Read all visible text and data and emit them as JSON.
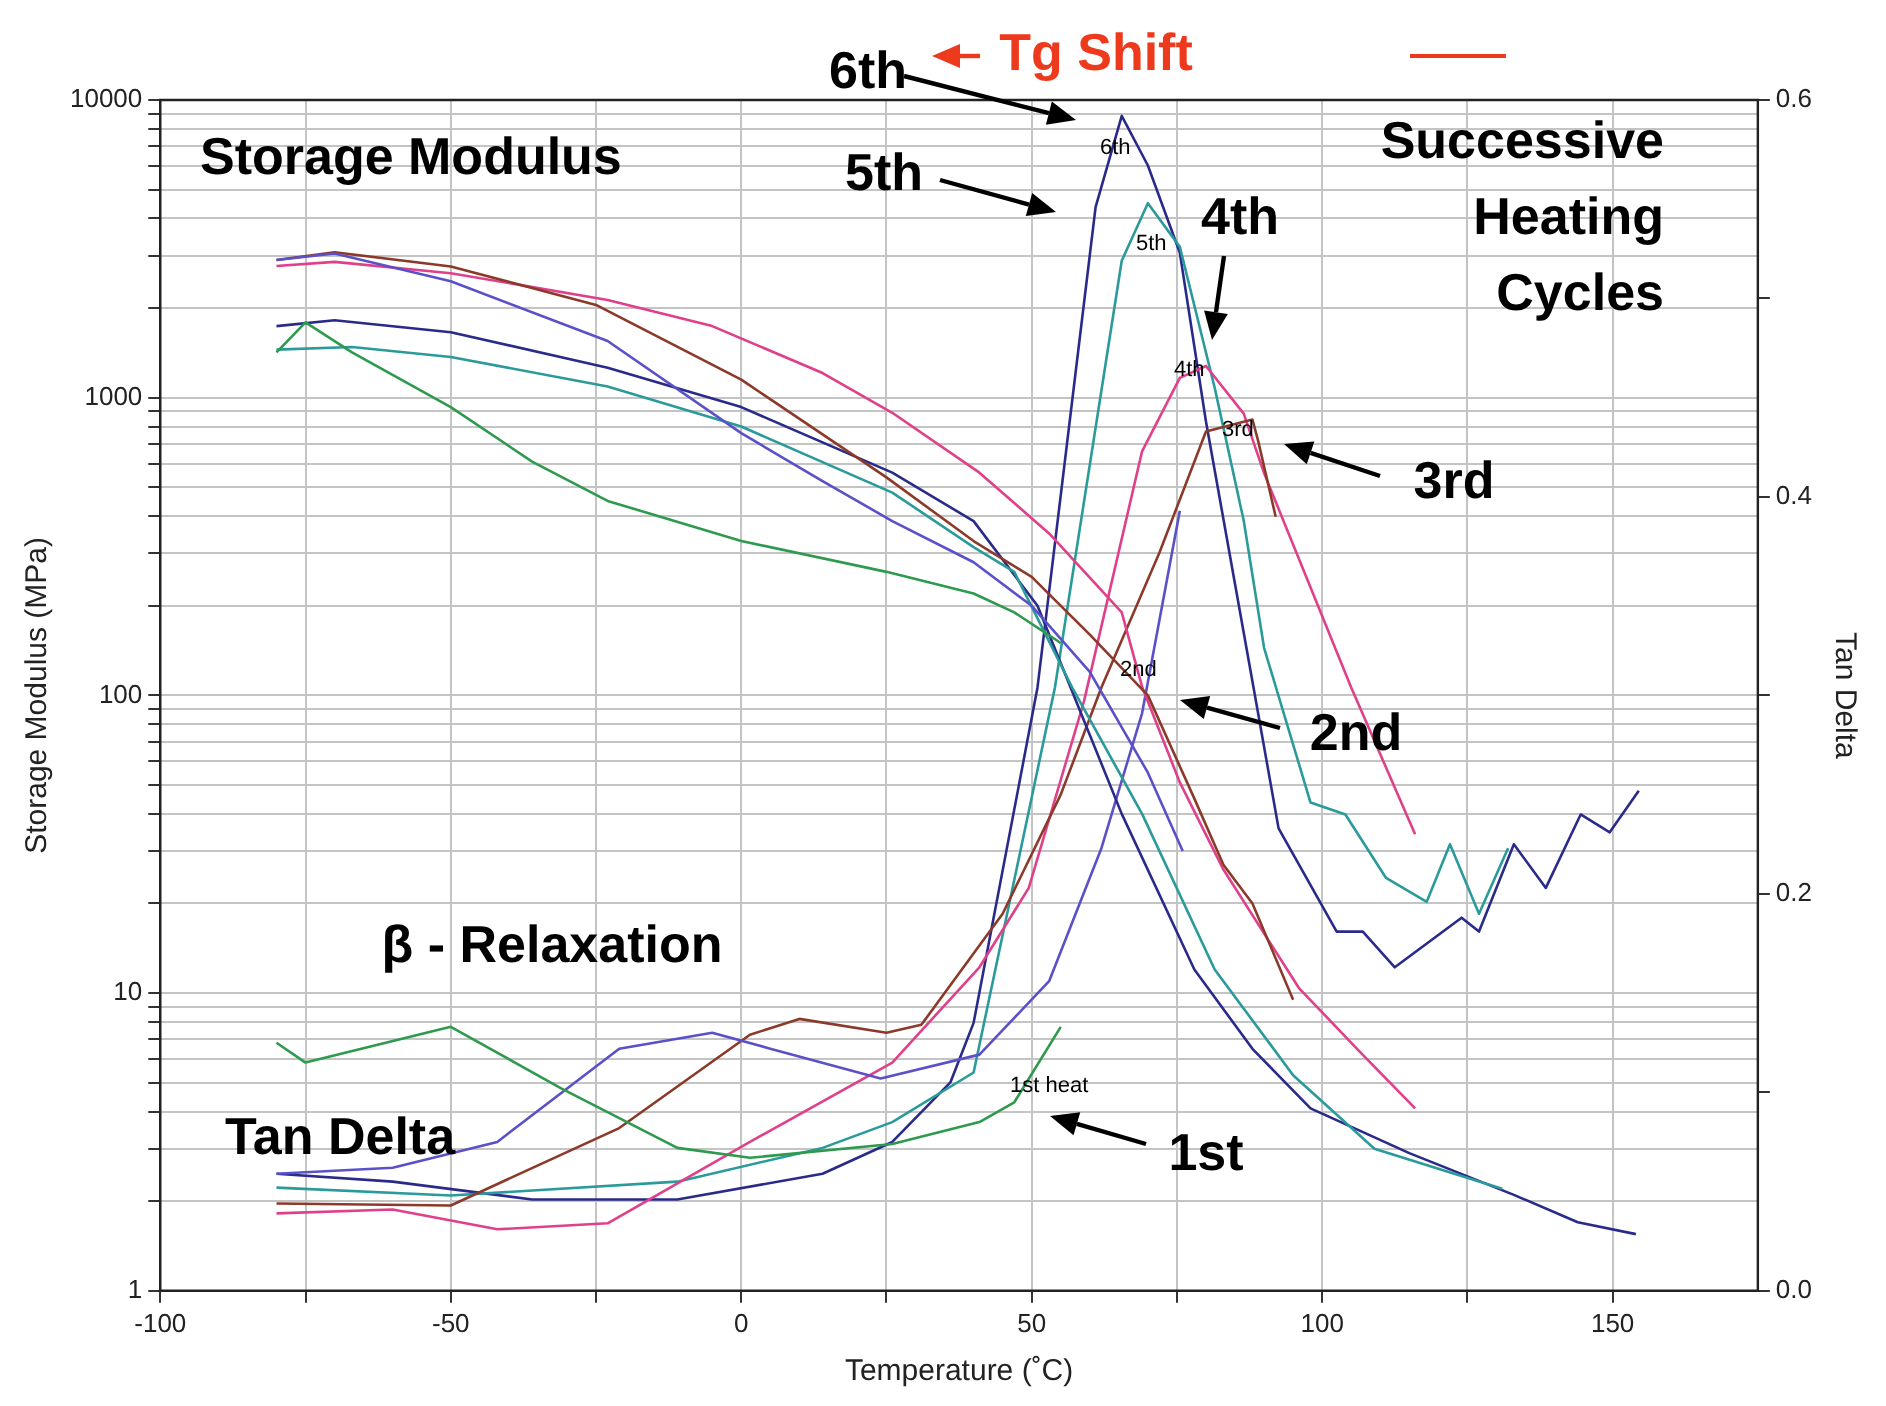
{
  "chart_data": {
    "type": "line",
    "xlabel": "Temperature (˚C)",
    "ylabel": "Storage Modulus (MPa)",
    "y2label": "Tan Delta",
    "xlim": [
      -100,
      175
    ],
    "xticks": [
      -100,
      {
        "value": -75,
        "label": null
      },
      -50,
      {
        "value": -25,
        "label": null
      },
      0,
      {
        "value": 25,
        "label": null
      },
      50,
      {
        "value": 75,
        "label": null
      },
      100,
      {
        "value": 125,
        "label": null
      },
      150
    ],
    "ylim": [
      1,
      10000
    ],
    "log": "y",
    "yticks": [
      1,
      {
        "value": 2,
        "label": null
      },
      {
        "value": 3,
        "label": null
      },
      {
        "value": 4,
        "label": null
      },
      {
        "value": 5,
        "label": null
      },
      {
        "value": 6,
        "label": null
      },
      {
        "value": 7,
        "label": null
      },
      {
        "value": 8,
        "label": null
      },
      {
        "value": 9,
        "label": null
      },
      10,
      {
        "value": 20,
        "label": null
      },
      {
        "value": 30,
        "label": null
      },
      {
        "value": 40,
        "label": null
      },
      {
        "value": 50,
        "label": null
      },
      {
        "value": 60,
        "label": null
      },
      {
        "value": 70,
        "label": null
      },
      {
        "value": 80,
        "label": null
      },
      {
        "value": 90,
        "label": null
      },
      100,
      {
        "value": 200,
        "label": null
      },
      {
        "value": 300,
        "label": null
      },
      {
        "value": 400,
        "label": null
      },
      {
        "value": 500,
        "label": null
      },
      {
        "value": 600,
        "label": null
      },
      {
        "value": 700,
        "label": null
      },
      {
        "value": 800,
        "label": null
      },
      {
        "value": 900,
        "label": null
      },
      1000,
      {
        "value": 2000,
        "label": null
      },
      {
        "value": 3000,
        "label": null
      },
      {
        "value": 4000,
        "label": null
      },
      {
        "value": 5000,
        "label": null
      },
      {
        "value": 6000,
        "label": null
      },
      {
        "value": 7000,
        "label": null
      },
      {
        "value": 8000,
        "label": null
      },
      {
        "value": 9000,
        "label": null
      },
      10000
    ],
    "y2lim": [
      0,
      0.6
    ],
    "y2ticks": [
      {
        "value": 0,
        "label": "0.0"
      },
      {
        "value": 0.1,
        "label": null
      },
      {
        "value": 0.2,
        "label": "0.2"
      },
      {
        "value": 0.3,
        "label": null
      },
      {
        "value": 0.4,
        "label": "0.4"
      },
      {
        "value": 0.5,
        "label": null
      },
      {
        "value": 0.6,
        "label": "0.6"
      }
    ],
    "grid": true,
    "legend": false,
    "marker": "none",
    "line_style": "solid",
    "series": [
      {
        "color": "#2e9a4e",
        "x": [
          -80,
          -75,
          -67,
          -50,
          -36,
          -23,
          0,
          25,
          40,
          47,
          55
        ],
        "values": [
          1420,
          1790,
          1420,
          930,
          610,
          450,
          330,
          260,
          220,
          190,
          150
        ]
      },
      {
        "color": "#5a50c8",
        "x": [
          -80,
          -70,
          -50,
          -23,
          0,
          14,
          26,
          40,
          50,
          60,
          70,
          76
        ],
        "values": [
          2900,
          3050,
          2460,
          1550,
          760,
          525,
          385,
          280,
          200,
          120,
          55,
          30
        ]
      },
      {
        "color": "#8b3a2a",
        "x": [
          -80,
          -70,
          -50,
          -25,
          0,
          25,
          40,
          50,
          60,
          70,
          78,
          83,
          88,
          95
        ],
        "values": [
          2900,
          3080,
          2760,
          2050,
          1150,
          540,
          330,
          250,
          160,
          100,
          45,
          27,
          20,
          9.5
        ]
      },
      {
        "color": "#e0408a",
        "x": [
          -80,
          -70,
          -50,
          -23,
          -5,
          14,
          26,
          41,
          53,
          65.5,
          69,
          75.5,
          83,
          96,
          106,
          116
        ],
        "values": [
          2770,
          2860,
          2620,
          2130,
          1740,
          1210,
          890,
          560,
          350,
          190,
          107,
          51,
          26,
          10.4,
          6.5,
          4.1
        ]
      },
      {
        "color": "#2a9a9a",
        "x": [
          -80,
          -67,
          -50,
          -23,
          0,
          26,
          40,
          47,
          57,
          69,
          81.5,
          95,
          109,
          131
        ],
        "values": [
          1450,
          1480,
          1370,
          1090,
          800,
          480,
          315,
          260,
          106,
          40,
          12,
          5.3,
          3,
          2.2
        ]
      },
      {
        "color": "#2a2a8a",
        "x": [
          -80,
          -70,
          -50,
          -23,
          0,
          26,
          40,
          51,
          65.5,
          78,
          88,
          98,
          115,
          133,
          144,
          154
        ],
        "values": [
          1740,
          1820,
          1660,
          1260,
          930,
          560,
          385,
          200,
          40,
          12,
          6.5,
          4.1,
          2.9,
          2.1,
          1.7,
          1.55
        ]
      },
      {
        "color": "#2e9a4e",
        "axis": "y2",
        "x": [
          -80,
          -75,
          -50,
          -31,
          -11,
          1.5,
          26,
          41,
          47,
          55
        ],
        "values": [
          0.125,
          0.115,
          0.133,
          0.102,
          0.072,
          0.067,
          0.074,
          0.085,
          0.095,
          0.133
        ]
      },
      {
        "color": "#5a50c8",
        "axis": "y2",
        "x": [
          -80,
          -60,
          -42,
          -21,
          -5,
          5,
          24,
          41,
          53,
          62,
          69,
          75.5
        ],
        "values": [
          0.059,
          0.062,
          0.075,
          0.122,
          0.13,
          0.122,
          0.107,
          0.119,
          0.156,
          0.223,
          0.291,
          0.393
        ]
      },
      {
        "color": "#8b3a2a",
        "axis": "y2",
        "x": [
          -80,
          -50,
          -21,
          1.5,
          10,
          25,
          31,
          45,
          55,
          62,
          72,
          80,
          88,
          89,
          92
        ],
        "values": [
          0.044,
          0.043,
          0.082,
          0.129,
          0.137,
          0.13,
          0.134,
          0.19,
          0.25,
          0.304,
          0.372,
          0.433,
          0.439,
          0.428,
          0.39
        ]
      },
      {
        "color": "#e0408a",
        "axis": "y2",
        "x": [
          -80,
          -60,
          -42,
          -23,
          1.5,
          26,
          41,
          49.5,
          59,
          69,
          75.5,
          80,
          86.5,
          90,
          105,
          116
        ],
        "values": [
          0.039,
          0.041,
          0.031,
          0.034,
          0.075,
          0.115,
          0.163,
          0.203,
          0.297,
          0.423,
          0.46,
          0.466,
          0.442,
          0.412,
          0.304,
          0.23
        ]
      },
      {
        "color": "#2a9a9a",
        "axis": "y2",
        "x": [
          -80,
          -50,
          -11,
          14,
          26,
          40,
          54,
          65.5,
          70,
          75.5,
          81.5,
          86.5,
          90,
          98,
          104,
          111,
          118,
          122,
          127,
          132
        ],
        "values": [
          0.052,
          0.048,
          0.055,
          0.072,
          0.085,
          0.11,
          0.304,
          0.519,
          0.548,
          0.526,
          0.455,
          0.388,
          0.324,
          0.246,
          0.24,
          0.208,
          0.196,
          0.225,
          0.19,
          0.223
        ]
      },
      {
        "color": "#2a2a8a",
        "axis": "y2",
        "x": [
          -80,
          -60,
          -36,
          -11,
          14,
          26,
          36,
          40,
          51,
          61,
          65.5,
          70,
          75.5,
          80,
          88,
          92.5,
          102.5,
          107,
          112.5,
          124,
          127,
          133,
          138.5,
          144.5,
          149.5,
          154.5
        ],
        "values": [
          0.059,
          0.055,
          0.046,
          0.046,
          0.059,
          0.075,
          0.105,
          0.135,
          0.304,
          0.546,
          0.592,
          0.567,
          0.523,
          0.438,
          0.307,
          0.233,
          0.181,
          0.181,
          0.163,
          0.188,
          0.181,
          0.225,
          0.203,
          0.24,
          0.231,
          0.252
        ]
      }
    ],
    "annotations": [
      "Storage Modulus",
      "Successive Heating Cycles",
      "Tg Shift",
      "6th",
      "5th",
      "4th",
      "3rd",
      "2nd",
      "1st",
      "β - Relaxation",
      "Tan Delta",
      "6th",
      "5th",
      "4th",
      "3rd",
      "2nd",
      "1st heat"
    ]
  }
}
